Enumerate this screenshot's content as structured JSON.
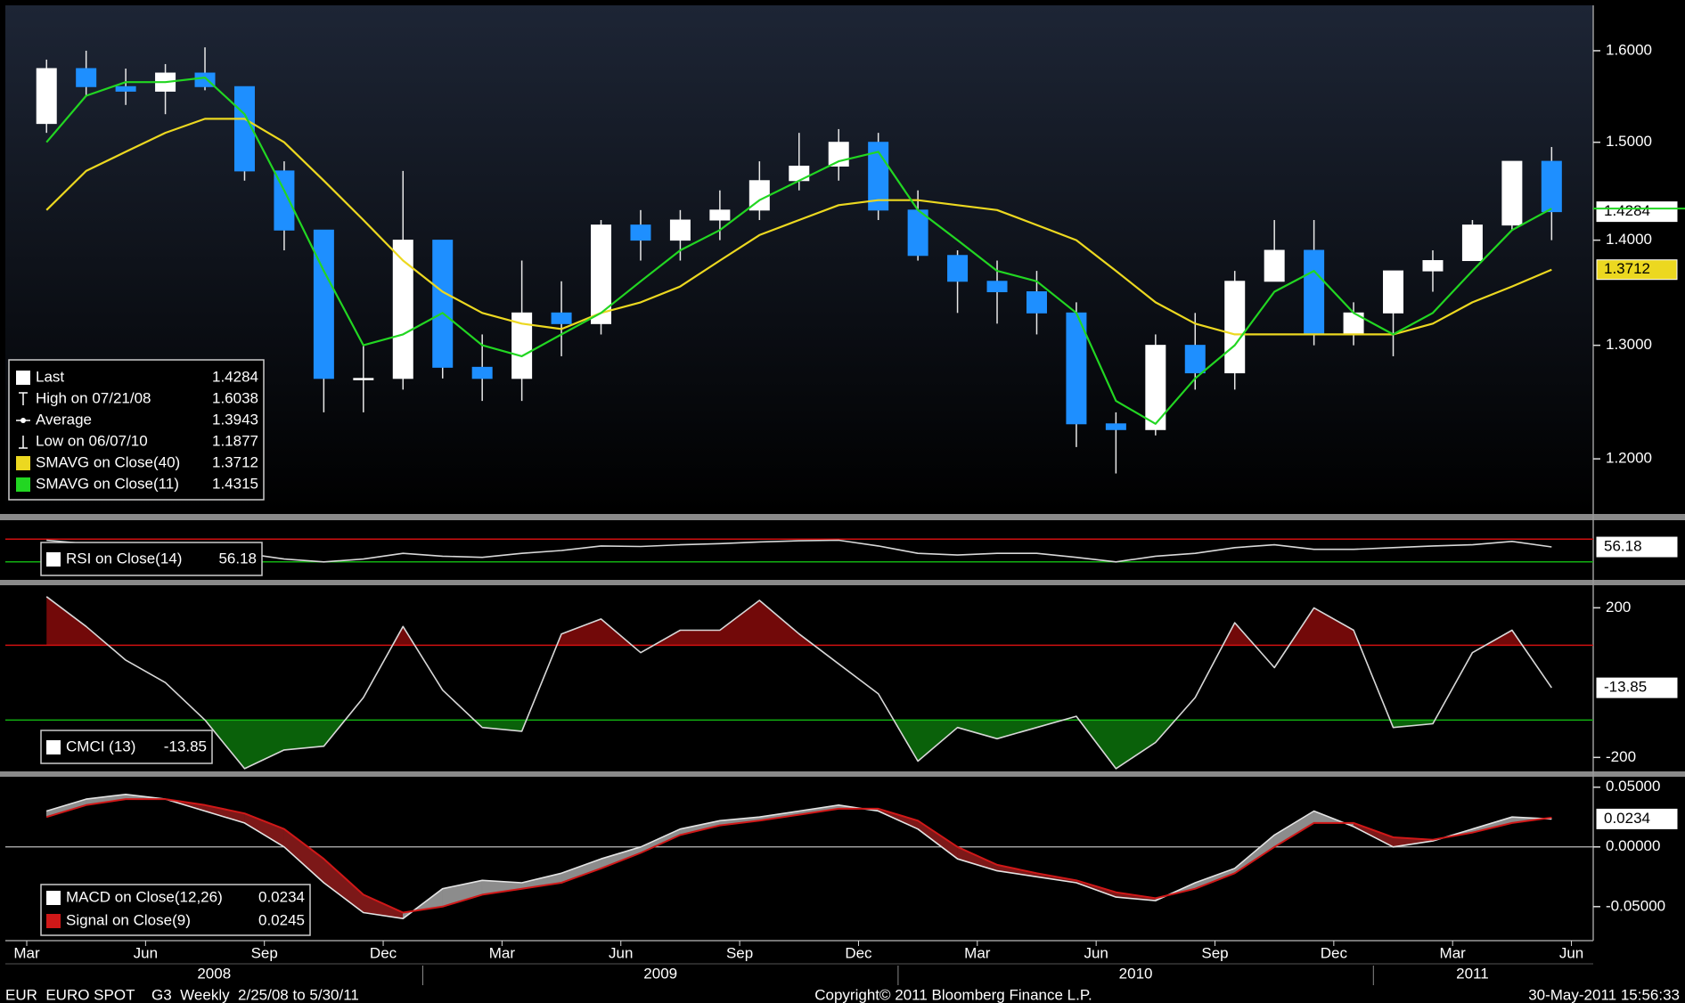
{
  "chart_data": [
    {
      "type": "candlestick",
      "x": [
        "2008-03",
        "2008-04",
        "2008-05",
        "2008-06",
        "2008-07",
        "2008-08",
        "2008-09",
        "2008-10",
        "2008-11",
        "2008-12",
        "2009-01",
        "2009-02",
        "2009-03",
        "2009-04",
        "2009-05",
        "2009-06",
        "2009-07",
        "2009-08",
        "2009-09",
        "2009-10",
        "2009-11",
        "2009-12",
        "2010-01",
        "2010-02",
        "2010-03",
        "2010-04",
        "2010-05",
        "2010-06",
        "2010-07",
        "2010-08",
        "2010-09",
        "2010-10",
        "2010-11",
        "2010-12",
        "2011-01",
        "2011-02",
        "2011-03",
        "2011-04",
        "2011-05"
      ],
      "open": [
        1.52,
        1.58,
        1.56,
        1.555,
        1.575,
        1.56,
        1.47,
        1.41,
        1.27,
        1.27,
        1.4,
        1.28,
        1.27,
        1.33,
        1.32,
        1.415,
        1.4,
        1.42,
        1.43,
        1.46,
        1.475,
        1.5,
        1.43,
        1.385,
        1.36,
        1.35,
        1.33,
        1.23,
        1.225,
        1.3,
        1.275,
        1.36,
        1.39,
        1.31,
        1.33,
        1.37,
        1.38,
        1.415,
        1.48
      ],
      "high": [
        1.59,
        1.6,
        1.58,
        1.585,
        1.6038,
        1.56,
        1.48,
        1.41,
        1.3,
        1.47,
        1.4,
        1.31,
        1.38,
        1.36,
        1.42,
        1.43,
        1.43,
        1.45,
        1.48,
        1.51,
        1.514,
        1.51,
        1.45,
        1.39,
        1.38,
        1.37,
        1.34,
        1.24,
        1.31,
        1.33,
        1.37,
        1.42,
        1.42,
        1.34,
        1.37,
        1.39,
        1.42,
        1.48,
        1.495
      ],
      "low": [
        1.51,
        1.55,
        1.54,
        1.53,
        1.556,
        1.46,
        1.39,
        1.24,
        1.24,
        1.26,
        1.27,
        1.25,
        1.25,
        1.29,
        1.31,
        1.38,
        1.38,
        1.4,
        1.42,
        1.45,
        1.46,
        1.42,
        1.38,
        1.33,
        1.32,
        1.31,
        1.21,
        1.1877,
        1.22,
        1.26,
        1.26,
        1.36,
        1.3,
        1.3,
        1.29,
        1.35,
        1.38,
        1.41,
        1.4
      ],
      "close": [
        1.58,
        1.56,
        1.555,
        1.575,
        1.56,
        1.47,
        1.41,
        1.27,
        1.27,
        1.4,
        1.28,
        1.27,
        1.33,
        1.32,
        1.415,
        1.4,
        1.42,
        1.43,
        1.46,
        1.475,
        1.5,
        1.43,
        1.385,
        1.36,
        1.35,
        1.33,
        1.23,
        1.225,
        1.3,
        1.275,
        1.36,
        1.39,
        1.31,
        1.33,
        1.37,
        1.38,
        1.415,
        1.48,
        1.4284
      ],
      "up_color": "#ffffff",
      "down_color": "#1e8fff",
      "series": [
        {
          "name": "SMAVG on Close(40)",
          "color": "#ecd820",
          "values": [
            1.43,
            1.47,
            1.49,
            1.51,
            1.525,
            1.525,
            1.5,
            1.46,
            1.42,
            1.38,
            1.35,
            1.33,
            1.32,
            1.315,
            1.33,
            1.34,
            1.355,
            1.38,
            1.405,
            1.42,
            1.435,
            1.44,
            1.44,
            1.435,
            1.43,
            1.415,
            1.4,
            1.37,
            1.34,
            1.32,
            1.31,
            1.31,
            1.31,
            1.31,
            1.31,
            1.32,
            1.34,
            1.355,
            1.3712
          ]
        },
        {
          "name": "SMAVG on Close(11)",
          "color": "#22d622",
          "values": [
            1.5,
            1.55,
            1.565,
            1.565,
            1.57,
            1.53,
            1.45,
            1.37,
            1.3,
            1.31,
            1.33,
            1.3,
            1.29,
            1.31,
            1.33,
            1.36,
            1.39,
            1.41,
            1.44,
            1.46,
            1.48,
            1.49,
            1.43,
            1.4,
            1.37,
            1.36,
            1.33,
            1.25,
            1.23,
            1.27,
            1.3,
            1.35,
            1.37,
            1.33,
            1.31,
            1.33,
            1.37,
            1.41,
            1.4315
          ]
        }
      ],
      "ylim": [
        1.155,
        1.652
      ],
      "log_scale": true,
      "yticks": [
        {
          "value": 1.6,
          "label": "1.6000"
        },
        {
          "value": 1.5,
          "label": "1.5000"
        },
        {
          "value": 1.4,
          "label": "1.4000"
        },
        {
          "value": 1.3,
          "label": "1.3000"
        },
        {
          "value": 1.2,
          "label": "1.2000"
        }
      ],
      "stats": {
        "last_label": "Last",
        "high_label": "High on 07/21/08",
        "average_label": "Average",
        "average": 1.3943,
        "low_label": "Low on 06/07/10"
      }
    },
    {
      "type": "line",
      "series": [
        {
          "name": "RSI on Close(14)",
          "color": "#d8d8d8",
          "values": [
            68,
            62,
            57,
            55,
            55,
            45,
            35,
            30,
            35,
            45,
            40,
            38,
            45,
            50,
            58,
            57,
            60,
            62,
            65,
            67,
            68,
            58,
            45,
            42,
            45,
            45,
            38,
            30,
            40,
            45,
            55,
            60,
            52,
            52,
            55,
            58,
            60,
            66,
            56.18
          ]
        }
      ],
      "ylim": [
        0,
        100
      ],
      "yticks": [],
      "levels": [
        {
          "value": 70,
          "color": "#d01010"
        },
        {
          "value": 30,
          "color": "#12b012"
        }
      ]
    },
    {
      "type": "line",
      "series": [
        {
          "name": "CMCI (13)",
          "color": "#d8d8d8",
          "values": [
            230,
            150,
            60,
            0,
            -100,
            -230,
            -180,
            -170,
            -40,
            150,
            -20,
            -120,
            -130,
            130,
            170,
            80,
            140,
            140,
            220,
            130,
            50,
            -30,
            -210,
            -120,
            -150,
            -120,
            -90,
            -230,
            -160,
            -40,
            160,
            40,
            200,
            140,
            -120,
            -110,
            80,
            140,
            -13.85
          ]
        }
      ],
      "ylim": [
        -235,
        258
      ],
      "yticks": [
        200,
        -200
      ],
      "levels": [
        {
          "value": 100,
          "color": "#d01010"
        },
        {
          "value": -100,
          "color": "#12b012"
        }
      ]
    },
    {
      "type": "macd",
      "series": [
        {
          "name": "MACD on Close(12,26)",
          "color": "#e4e4e4",
          "values": [
            0.03,
            0.04,
            0.044,
            0.04,
            0.03,
            0.02,
            0.0,
            -0.03,
            -0.055,
            -0.06,
            -0.035,
            -0.028,
            -0.03,
            -0.022,
            -0.01,
            0.0,
            0.015,
            0.022,
            0.025,
            0.03,
            0.035,
            0.03,
            0.015,
            -0.01,
            -0.02,
            -0.025,
            -0.03,
            -0.042,
            -0.045,
            -0.03,
            -0.018,
            0.01,
            0.03,
            0.017,
            0.0,
            0.005,
            0.015,
            0.025,
            0.0234
          ]
        },
        {
          "name": "Signal on Close(9)",
          "color": "#d01818",
          "values": [
            0.025,
            0.035,
            0.04,
            0.04,
            0.035,
            0.028,
            0.015,
            -0.01,
            -0.04,
            -0.055,
            -0.05,
            -0.04,
            -0.035,
            -0.03,
            -0.018,
            -0.005,
            0.01,
            0.018,
            0.022,
            0.027,
            0.032,
            0.032,
            0.022,
            0.0,
            -0.015,
            -0.022,
            -0.028,
            -0.038,
            -0.043,
            -0.035,
            -0.022,
            0.0,
            0.02,
            0.02,
            0.008,
            0.006,
            0.012,
            0.02,
            0.0245
          ]
        }
      ],
      "ylim": [
        -0.077,
        0.058
      ],
      "yticks": [
        {
          "value": 0.05,
          "label": "0.05000"
        },
        {
          "value": 0,
          "label": "0.00000"
        },
        {
          "value": -0.05,
          "label": "-0.05000"
        }
      ]
    }
  ],
  "x_axis": {
    "ticks": [
      {
        "value": "2008-03",
        "label": "Mar"
      },
      {
        "value": "2008-06",
        "label": "Jun"
      },
      {
        "value": "2008-09",
        "label": "Sep"
      },
      {
        "value": "2008-12",
        "label": "Dec"
      },
      {
        "value": "2009-03",
        "label": "Mar"
      },
      {
        "value": "2009-06",
        "label": "Jun"
      },
      {
        "value": "2009-09",
        "label": "Sep"
      },
      {
        "value": "2009-12",
        "label": "Dec"
      },
      {
        "value": "2010-03",
        "label": "Mar"
      },
      {
        "value": "2010-06",
        "label": "Jun"
      },
      {
        "value": "2010-09",
        "label": "Sep"
      },
      {
        "value": "2010-12",
        "label": "Dec"
      },
      {
        "value": "2011-03",
        "label": "Mar"
      },
      {
        "value": "2011-06",
        "label": "Jun"
      }
    ],
    "years": [
      2008,
      2009,
      2010,
      2011
    ]
  },
  "footer": {
    "left": "EUR  EURO SPOT    G3  Weekly  2/25/08 to 5/30/11",
    "center": "Copyright© 2011 Bloomberg Finance L.P.",
    "right": "30-May-2011 15:56:33"
  }
}
